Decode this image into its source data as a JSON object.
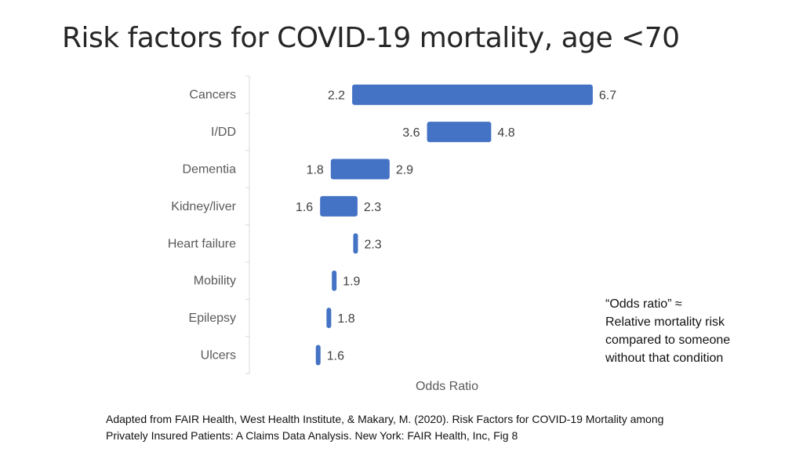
{
  "title": "Risk factors for COVID-19 mortality, age <70",
  "chart_data": {
    "type": "bar",
    "subtype": "floating-range",
    "xlabel": "Odds Ratio",
    "categories": [
      "Cancers",
      "I/DD",
      "Dementia",
      "Kidney/liver",
      "Heart failure",
      "Mobility",
      "Epilepsy",
      "Ulcers"
    ],
    "low": [
      2.2,
      3.6,
      1.8,
      1.6,
      null,
      null,
      null,
      null
    ],
    "high": [
      6.7,
      4.8,
      2.9,
      2.3,
      2.3,
      1.9,
      1.8,
      1.6
    ],
    "low_labels": [
      "2.2",
      "3.6",
      "1.8",
      "1.6",
      "",
      "",
      "",
      ""
    ],
    "high_labels": [
      "6.7",
      "4.8",
      "2.9",
      "2.3",
      "2.3",
      "1.9",
      "1.8",
      "1.6"
    ],
    "xlim": [
      0.6,
      7.2
    ],
    "bar_color": "#4472C4"
  },
  "note": {
    "lines": [
      "“Odds ratio” ≈",
      "Relative mortality risk",
      "compared to someone",
      "without that condition"
    ]
  },
  "source": {
    "lines": [
      "Adapted from FAIR Health, West Health Institute, & Makary, M. (2020). Risk Factors for COVID-19 Mortality among",
      "Privately Insured Patients: A Claims Data Analysis. New York: FAIR Health, Inc, Fig 8"
    ]
  }
}
